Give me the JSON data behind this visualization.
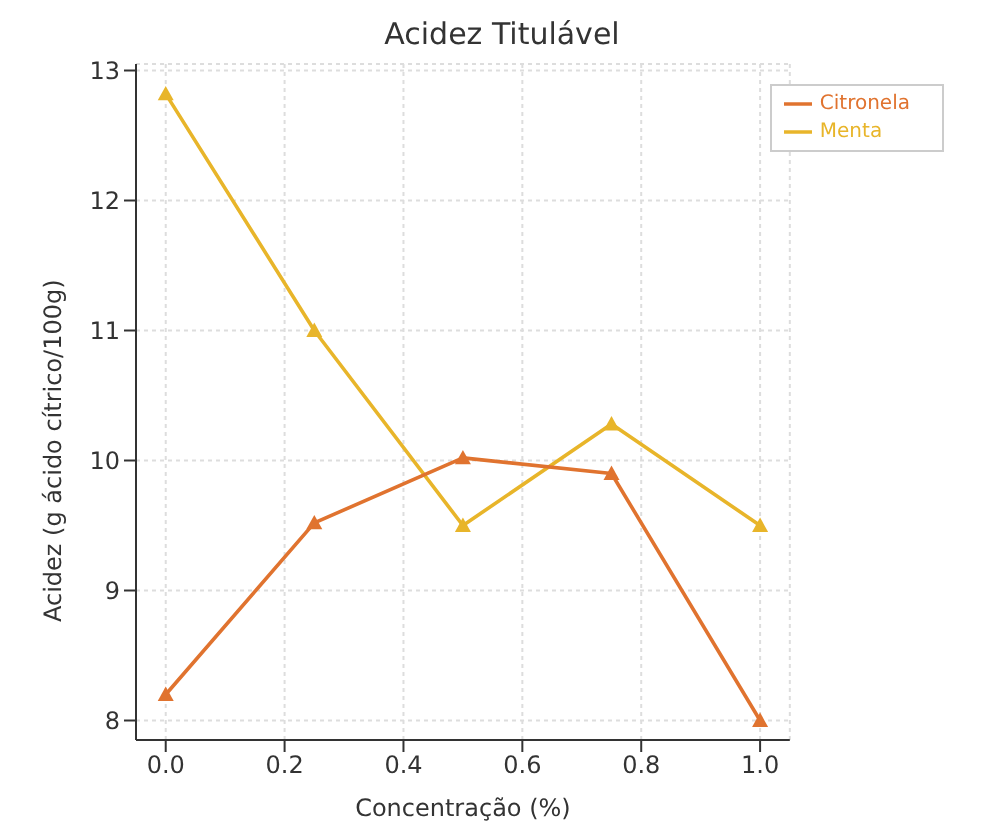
{
  "chart_data": {
    "type": "line",
    "title": "Acidez Titulável",
    "xlabel": "Concentração (%)",
    "ylabel": "Acidez (g ácido cítrico/100g)",
    "x": [
      0,
      0.25,
      0.5,
      0.75,
      1
    ],
    "series": [
      {
        "name": "Menta",
        "color": "#e8b52a",
        "values": [
          12.82,
          11.0,
          9.5,
          10.28,
          9.5
        ]
      },
      {
        "name": "Citronela",
        "color": "#e0732f",
        "values": [
          8.2,
          9.52,
          10.02,
          9.9,
          8.0
        ]
      }
    ],
    "xlim": [
      -0.05,
      1.05
    ],
    "xticks": [
      {
        "value": 0,
        "label": "0.0"
      },
      {
        "value": 0.2,
        "label": "0.2"
      },
      {
        "value": 0.4,
        "label": "0.4"
      },
      {
        "value": 0.6,
        "label": "0.6"
      },
      {
        "value": 0.8,
        "label": "0.8"
      },
      {
        "value": 1,
        "label": "1.0"
      }
    ],
    "ylim": [
      7.85,
      13.05
    ],
    "yticks": [
      8,
      9,
      10,
      11,
      12,
      13
    ],
    "grid": true,
    "legend": "top right",
    "marker": "triangle",
    "line_style": "solid"
  }
}
